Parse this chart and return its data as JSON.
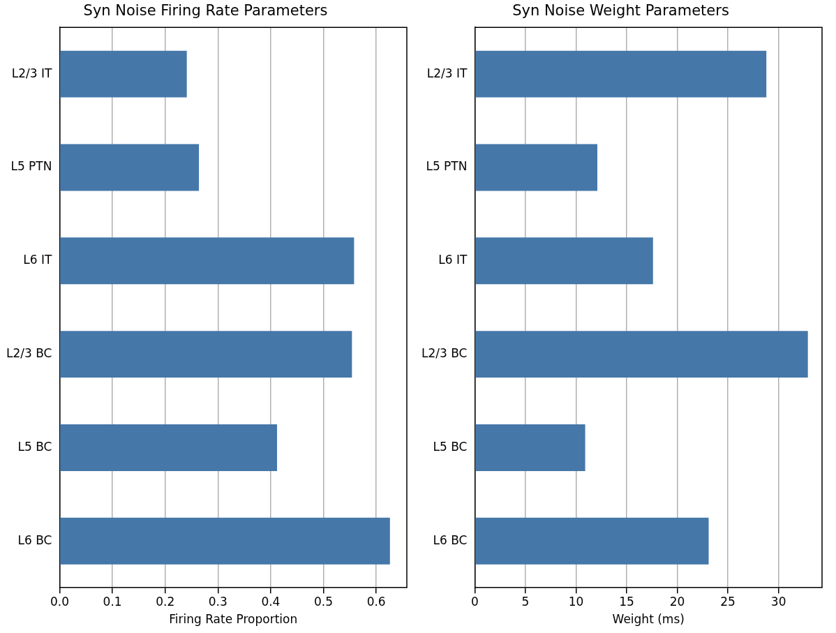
{
  "chart_data": [
    {
      "type": "bar",
      "orientation": "horizontal",
      "title": "Syn Noise Firing Rate Parameters",
      "xlabel": "Firing Rate Proportion",
      "categories": [
        "L2/3 IT",
        "L5 PTN",
        "L6 IT",
        "L2/3 BC",
        "L5 BC",
        "L6 BC"
      ],
      "values": [
        0.241,
        0.264,
        0.558,
        0.554,
        0.412,
        0.626
      ],
      "color": "#4577a9",
      "xlim": [
        0,
        0.658
      ],
      "xticks": [
        {
          "value": 0,
          "label": "0.0"
        },
        0.1,
        0.2,
        0.3,
        0.4,
        0.5,
        0.6
      ],
      "grid": "x",
      "legend": false
    },
    {
      "type": "bar",
      "orientation": "horizontal",
      "title": "Syn Noise Weight Parameters",
      "xlabel": "Weight (ms)",
      "categories": [
        "L2/3 IT",
        "L5 PTN",
        "L6 IT",
        "L2/3 BC",
        "L5 BC",
        "L6 BC"
      ],
      "values": [
        28.8,
        12.1,
        17.6,
        32.9,
        10.9,
        23.1
      ],
      "color": "#4577a9",
      "xlim": [
        0,
        34.3
      ],
      "xticks": [
        0,
        5,
        10,
        15,
        20,
        25,
        30
      ],
      "grid": "x",
      "legend": false
    }
  ]
}
